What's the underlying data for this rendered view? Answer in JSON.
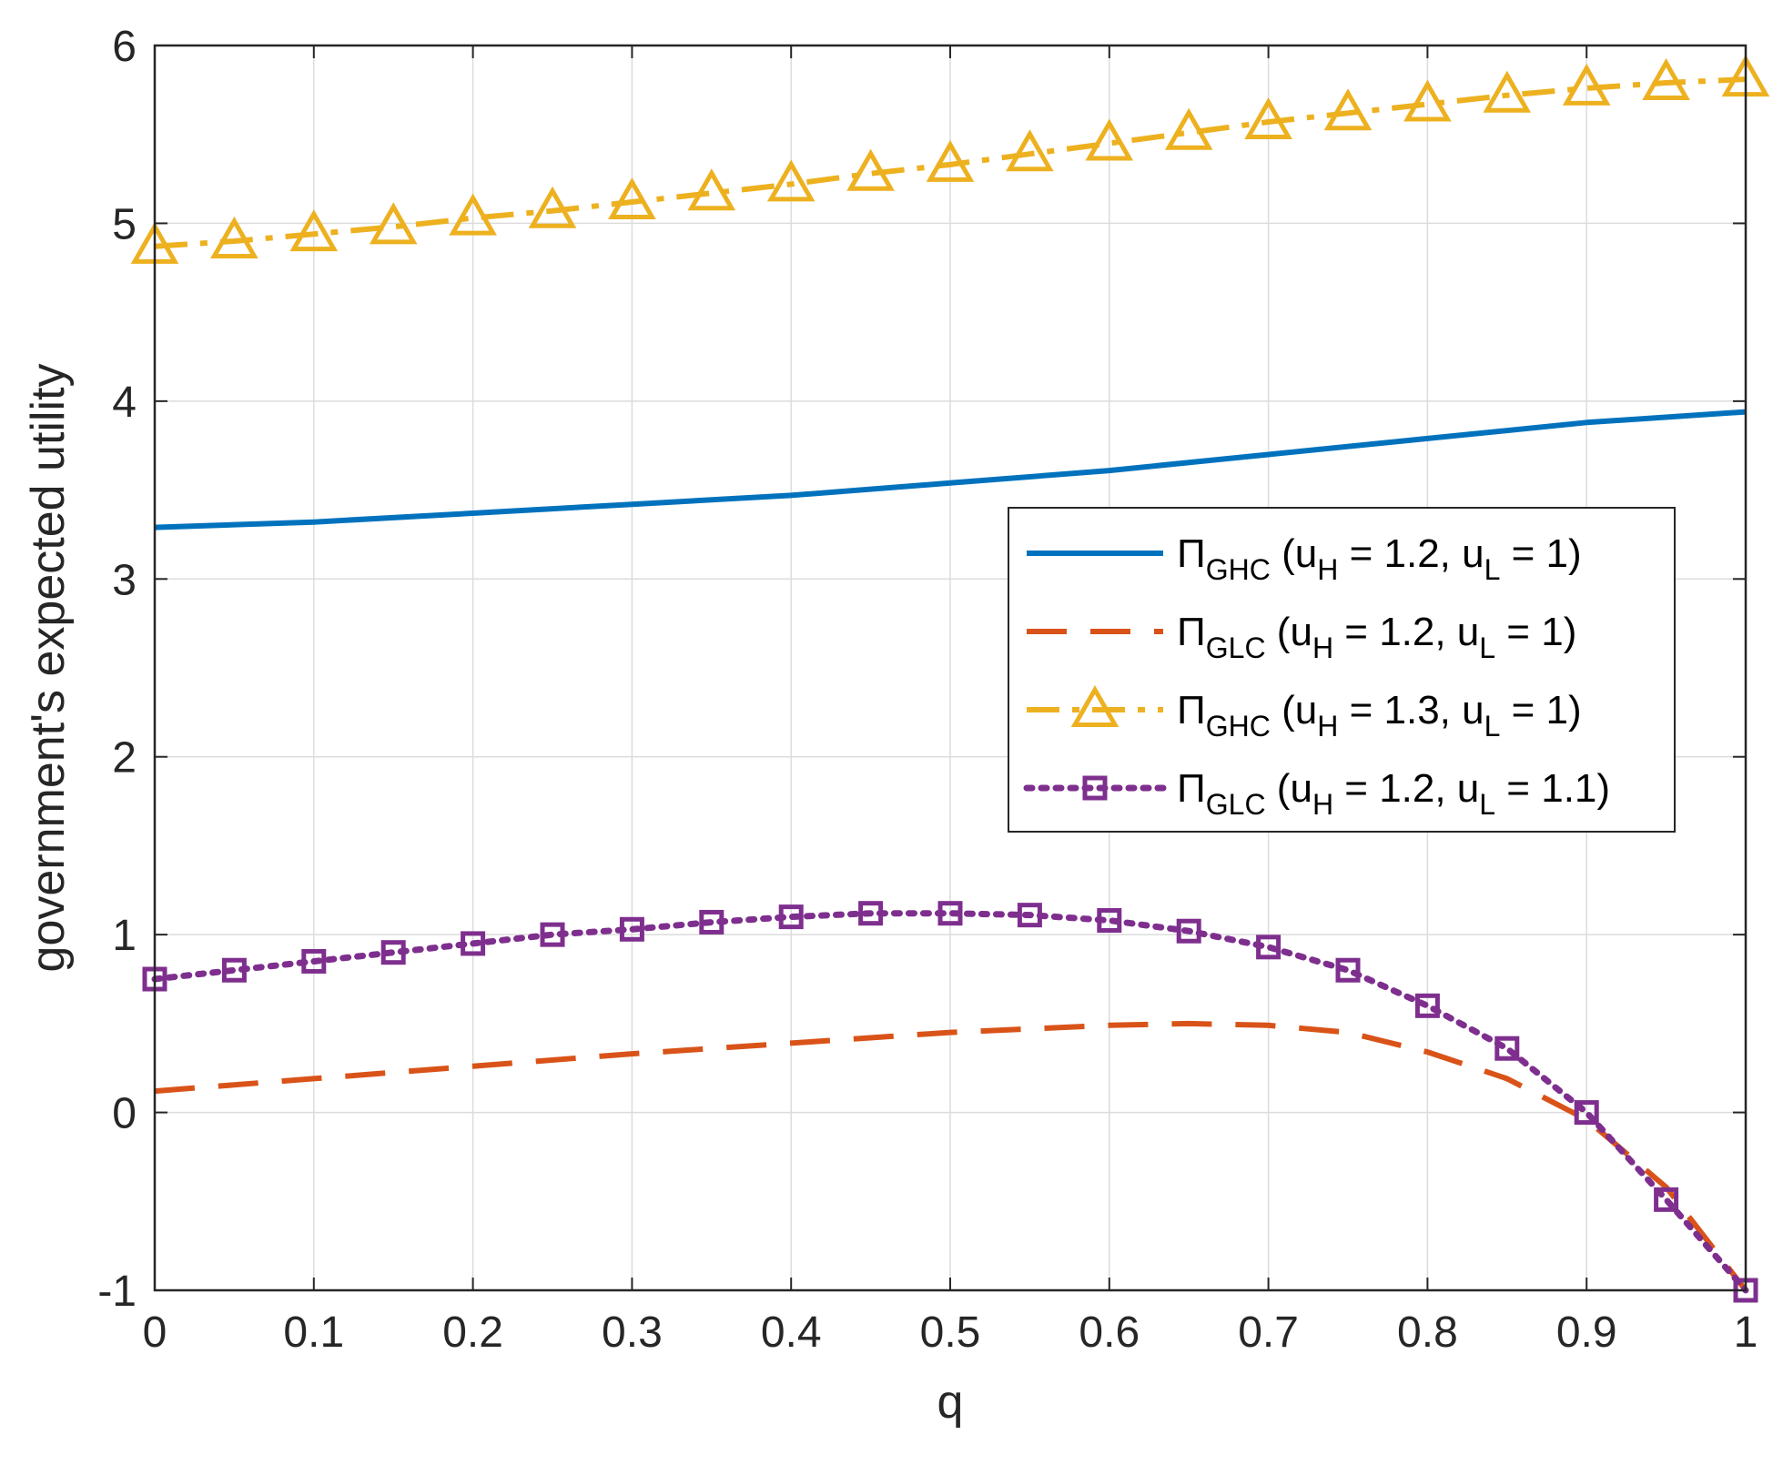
{
  "chart_data": {
    "type": "line",
    "title": "",
    "xlabel": "q",
    "ylabel": "government's expected utility",
    "xlim": [
      0,
      1
    ],
    "ylim": [
      -1,
      6
    ],
    "grid": true,
    "legend_position": "center-right",
    "xticks": [
      "0",
      "0.1",
      "0.2",
      "0.3",
      "0.4",
      "0.5",
      "0.6",
      "0.7",
      "0.8",
      "0.9",
      "1"
    ],
    "yticks": [
      "-1",
      "0",
      "1",
      "2",
      "3",
      "4",
      "5",
      "6"
    ],
    "series": [
      {
        "name": "ΠGHC (uH = 1.2, uL = 1)",
        "legend": {
          "symbol": "Π",
          "sub": "GHC",
          "pre": " (u",
          "sub1": "H",
          "mid": " = 1.2, u",
          "sub2": "L",
          "post": " = 1)"
        },
        "color": "#0072BD",
        "style": "solid",
        "marker": "none",
        "x": [
          0,
          0.1,
          0.2,
          0.3,
          0.4,
          0.5,
          0.6,
          0.7,
          0.8,
          0.9,
          1
        ],
        "values": [
          3.29,
          3.32,
          3.37,
          3.42,
          3.47,
          3.54,
          3.61,
          3.7,
          3.79,
          3.88,
          3.94
        ]
      },
      {
        "name": "ΠGLC (uH = 1.2, uL = 1)",
        "legend": {
          "symbol": "Π",
          "sub": "GLC",
          "pre": " (u",
          "sub1": "H",
          "mid": " = 1.2, u",
          "sub2": "L",
          "post": " = 1)"
        },
        "color": "#D95319",
        "style": "dashed",
        "marker": "none",
        "x": [
          0,
          0.1,
          0.2,
          0.3,
          0.4,
          0.5,
          0.6,
          0.65,
          0.7,
          0.75,
          0.8,
          0.85,
          0.9,
          0.95,
          1
        ],
        "values": [
          0.12,
          0.19,
          0.26,
          0.33,
          0.39,
          0.45,
          0.49,
          0.5,
          0.49,
          0.45,
          0.34,
          0.19,
          -0.04,
          -0.42,
          -1.0
        ]
      },
      {
        "name": "ΠGHC (uH = 1.3, uL = 1)",
        "legend": {
          "symbol": "Π",
          "sub": "GHC",
          "pre": " (u",
          "sub1": "H",
          "mid": " = 1.3, u",
          "sub2": "L",
          "post": " = 1)"
        },
        "color": "#EDB120",
        "style": "dashdot",
        "marker": "triangle",
        "x": [
          0,
          0.05,
          0.1,
          0.15,
          0.2,
          0.25,
          0.3,
          0.35,
          0.4,
          0.45,
          0.5,
          0.55,
          0.6,
          0.65,
          0.7,
          0.75,
          0.8,
          0.85,
          0.9,
          0.95,
          1
        ],
        "values": [
          4.87,
          4.9,
          4.94,
          4.98,
          5.03,
          5.07,
          5.12,
          5.17,
          5.22,
          5.28,
          5.33,
          5.39,
          5.45,
          5.51,
          5.57,
          5.62,
          5.67,
          5.72,
          5.76,
          5.79,
          5.81
        ]
      },
      {
        "name": "ΠGLC (uH = 1.2, uL = 1.1)",
        "legend": {
          "symbol": "Π",
          "sub": "GLC",
          "pre": " (u",
          "sub1": "H",
          "mid": " = 1.2, u",
          "sub2": "L",
          "post": " = 1.1)"
        },
        "color": "#7E2F8E",
        "style": "dotted",
        "marker": "square",
        "x": [
          0,
          0.05,
          0.1,
          0.15,
          0.2,
          0.25,
          0.3,
          0.35,
          0.4,
          0.45,
          0.5,
          0.55,
          0.6,
          0.65,
          0.7,
          0.75,
          0.8,
          0.85,
          0.9,
          0.95,
          1
        ],
        "values": [
          0.75,
          0.8,
          0.85,
          0.9,
          0.95,
          1.0,
          1.03,
          1.07,
          1.1,
          1.12,
          1.12,
          1.11,
          1.08,
          1.02,
          0.93,
          0.8,
          0.6,
          0.36,
          0.0,
          -0.49,
          -1.0
        ]
      }
    ]
  }
}
